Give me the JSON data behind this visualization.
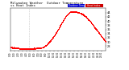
{
  "background_color": "#ffffff",
  "dot_color": "#ff0000",
  "dot_size": 0.4,
  "ylim": [
    26,
    46
  ],
  "yticks": [
    28,
    30,
    32,
    34,
    36,
    38,
    40,
    42,
    44
  ],
  "ytick_fontsize": 2.5,
  "xtick_fontsize": 1.8,
  "vline_x": 285,
  "num_points": 1440,
  "time_labels": [
    "0:00",
    "1:00",
    "2:00",
    "3:00",
    "4:00",
    "5:00",
    "6:00",
    "7:00",
    "8:00",
    "9:00",
    "10:00",
    "11:00",
    "12:00",
    "13:00",
    "14:00",
    "15:00",
    "16:00",
    "17:00",
    "18:00",
    "19:00",
    "20:00",
    "21:00",
    "22:00",
    "23:00"
  ],
  "title_text": "Milwaukee Weather  Outdoor Temperature",
  "subtitle_text": "vs Heat Index",
  "title_fontsize": 2.8,
  "legend_blue": "#0000cc",
  "legend_red": "#cc0000",
  "legend_fontsize": 2.2,
  "curve_hours": [
    0,
    1,
    2,
    3,
    4,
    5,
    6,
    7,
    8,
    9,
    10,
    11,
    12,
    13,
    14,
    15,
    16,
    17,
    18,
    19,
    20,
    21,
    22,
    23,
    24
  ],
  "curve_vals": [
    27.5,
    27.3,
    27.0,
    26.9,
    26.8,
    26.8,
    27.0,
    27.2,
    27.4,
    28.5,
    30.5,
    33.0,
    36.0,
    39.5,
    42.5,
    44.3,
    44.5,
    44.2,
    43.5,
    42.0,
    40.0,
    37.5,
    35.0,
    32.5,
    30.0
  ]
}
